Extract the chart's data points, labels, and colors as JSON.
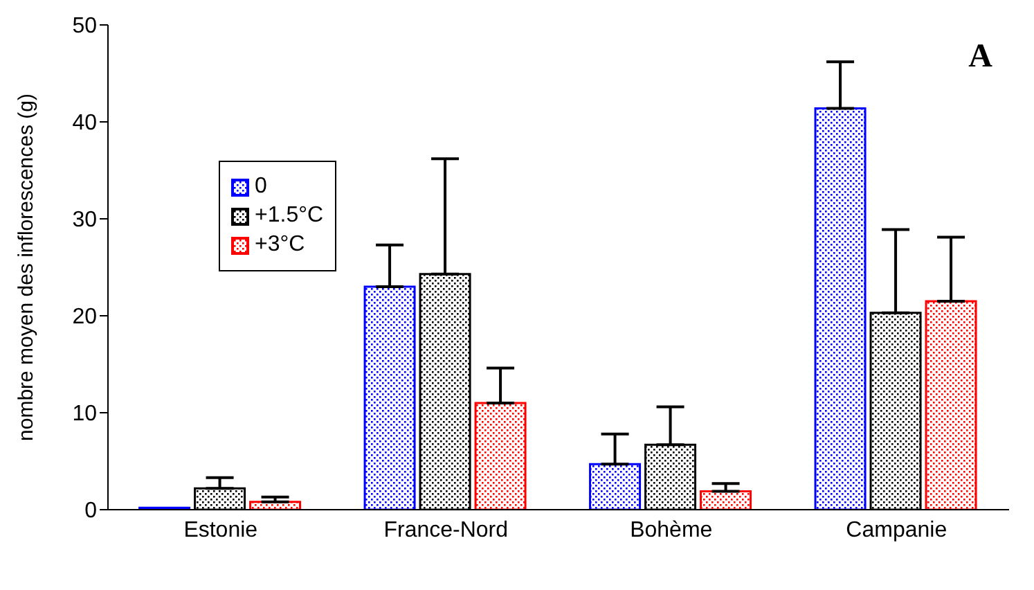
{
  "chart_data": {
    "type": "bar",
    "ylabel": "nombre moyen des inflorescences (g)",
    "categories": [
      "Estonie",
      "France-Nord",
      "Bohème",
      "Campanie"
    ],
    "series": [
      {
        "name": "0",
        "color": "#0000ff",
        "values": [
          0.2,
          23,
          4.7,
          41.4
        ],
        "errors": [
          null,
          [
            23,
            27.3
          ],
          [
            4.7,
            7.8
          ],
          [
            41.4,
            46.2
          ]
        ]
      },
      {
        "name": "+1.5°C",
        "color": "#000000",
        "values": [
          2.2,
          24.3,
          6.7,
          20.3
        ],
        "errors": [
          [
            2.2,
            3.3
          ],
          [
            24.3,
            36.2
          ],
          [
            6.7,
            10.6
          ],
          [
            20.3,
            28.9
          ]
        ]
      },
      {
        "name": "+3°C",
        "color": "#ff0000",
        "values": [
          0.8,
          11,
          1.9,
          21.5
        ],
        "errors": [
          [
            0.8,
            1.3
          ],
          [
            11,
            14.6
          ],
          [
            1.9,
            2.7
          ],
          [
            21.5,
            28.1
          ]
        ]
      }
    ],
    "ylim": [
      0,
      50
    ],
    "yticks": [
      0,
      10,
      20,
      30,
      40,
      50
    ],
    "grid": false,
    "legend": "top left",
    "annotations": [
      "A"
    ]
  }
}
